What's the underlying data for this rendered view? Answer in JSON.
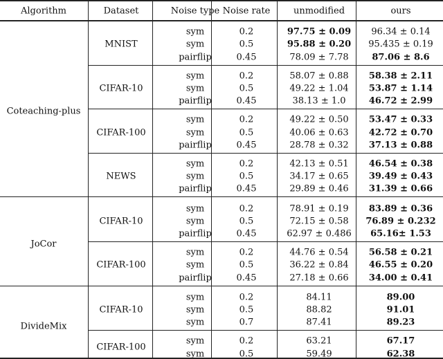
{
  "headers": [
    "Algorithm",
    "Dataset",
    "Noise type",
    "Noise rate",
    "unmodified",
    "ours"
  ],
  "algorithms": [
    {
      "name": "Coteaching-plus",
      "datasets": [
        {
          "name": "MNIST",
          "rows": [
            {
              "noise_type": "sym",
              "noise_rate": "0.2",
              "unmodified": "97.75 ± 0.09",
              "unmodified_bold": true,
              "ours": "96.34 ± 0.14",
              "ours_bold": false
            },
            {
              "noise_type": "sym",
              "noise_rate": "0.5",
              "unmodified": "95.88 ± 0.20",
              "unmodified_bold": true,
              "ours": "95.435 ± 0.19",
              "ours_bold": false
            },
            {
              "noise_type": "pairflip",
              "noise_rate": "0.45",
              "unmodified": "78.09 ± 7.78",
              "unmodified_bold": false,
              "ours": "87.06 ± 8.6",
              "ours_bold": true
            }
          ]
        },
        {
          "name": "CIFAR-10",
          "rows": [
            {
              "noise_type": "sym",
              "noise_rate": "0.2",
              "unmodified": "58.07 ± 0.88",
              "unmodified_bold": false,
              "ours": "58.38 ± 2.11",
              "ours_bold": true
            },
            {
              "noise_type": "sym",
              "noise_rate": "0.5",
              "unmodified": "49.22 ± 1.04",
              "unmodified_bold": false,
              "ours": "53.87 ± 1.14",
              "ours_bold": true
            },
            {
              "noise_type": "pairflip",
              "noise_rate": "0.45",
              "unmodified": "38.13 ± 1.0",
              "unmodified_bold": false,
              "ours": "46.72 ± 2.99",
              "ours_bold": true
            }
          ]
        },
        {
          "name": "CIFAR-100",
          "rows": [
            {
              "noise_type": "sym",
              "noise_rate": "0.2",
              "unmodified": "49.22 ± 0.50",
              "unmodified_bold": false,
              "ours": "53.47 ± 0.33",
              "ours_bold": true
            },
            {
              "noise_type": "sym",
              "noise_rate": "0.5",
              "unmodified": "40.06 ± 0.63",
              "unmodified_bold": false,
              "ours": "42.72 ± 0.70",
              "ours_bold": true
            },
            {
              "noise_type": "pairflip",
              "noise_rate": "0.45",
              "unmodified": "28.78 ± 0.32",
              "unmodified_bold": false,
              "ours": "37.13 ± 0.88",
              "ours_bold": true
            }
          ]
        },
        {
          "name": "NEWS",
          "rows": [
            {
              "noise_type": "sym",
              "noise_rate": "0.2",
              "unmodified": "42.13 ± 0.51",
              "unmodified_bold": false,
              "ours": "46.54 ± 0.38",
              "ours_bold": true
            },
            {
              "noise_type": "sym",
              "noise_rate": "0.5",
              "unmodified": "34.17 ± 0.65",
              "unmodified_bold": false,
              "ours": "39.49 ± 0.43",
              "ours_bold": true
            },
            {
              "noise_type": "pairflip",
              "noise_rate": "0.45",
              "unmodified": "29.89 ± 0.46",
              "unmodified_bold": false,
              "ours": "31.39 ± 0.66",
              "ours_bold": true
            }
          ]
        }
      ]
    },
    {
      "name": "JoCor",
      "datasets": [
        {
          "name": "CIFAR-10",
          "rows": [
            {
              "noise_type": "sym",
              "noise_rate": "0.2",
              "unmodified": "78.91 ± 0.19",
              "unmodified_bold": false,
              "ours": "83.89 ± 0.36",
              "ours_bold": true
            },
            {
              "noise_type": "sym",
              "noise_rate": "0.5",
              "unmodified": "72.15 ± 0.58",
              "unmodified_bold": false,
              "ours": "76.89 ± 0.232",
              "ours_bold": true
            },
            {
              "noise_type": "pairflip",
              "noise_rate": "0.45",
              "unmodified": "62.97 ± 0.486",
              "unmodified_bold": false,
              "ours": "65.16± 1.53",
              "ours_bold": true
            }
          ]
        },
        {
          "name": "CIFAR-100",
          "rows": [
            {
              "noise_type": "sym",
              "noise_rate": "0.2",
              "unmodified": "44.76 ± 0.54",
              "unmodified_bold": false,
              "ours": "56.58 ± 0.21",
              "ours_bold": true
            },
            {
              "noise_type": "sym",
              "noise_rate": "0.5",
              "unmodified": "36.22 ± 0.84",
              "unmodified_bold": false,
              "ours": "46.55 ± 0.20",
              "ours_bold": true
            },
            {
              "noise_type": "pairflip",
              "noise_rate": "0.45",
              "unmodified": "27.18 ± 0.66",
              "unmodified_bold": false,
              "ours": "34.00 ± 0.41",
              "ours_bold": true
            }
          ]
        }
      ]
    },
    {
      "name": "DivideMix",
      "datasets": [
        {
          "name": "CIFAR-10",
          "rows": [
            {
              "noise_type": "sym",
              "noise_rate": "0.2",
              "unmodified": "84.11",
              "unmodified_bold": false,
              "ours": "89.00",
              "ours_bold": true
            },
            {
              "noise_type": "sym",
              "noise_rate": "0.5",
              "unmodified": "88.82",
              "unmodified_bold": false,
              "ours": "91.01",
              "ours_bold": true
            },
            {
              "noise_type": "sym",
              "noise_rate": "0.7",
              "unmodified": "87.41",
              "unmodified_bold": false,
              "ours": "89.23",
              "ours_bold": true
            }
          ]
        },
        {
          "name": "CIFAR-100",
          "rows": [
            {
              "noise_type": "sym",
              "noise_rate": "0.2",
              "unmodified": "63.21",
              "unmodified_bold": false,
              "ours": "67.17",
              "ours_bold": true
            },
            {
              "noise_type": "sym",
              "noise_rate": "0.5",
              "unmodified": "59.49",
              "unmodified_bold": false,
              "ours": "62.38",
              "ours_bold": true
            }
          ]
        }
      ]
    }
  ]
}
